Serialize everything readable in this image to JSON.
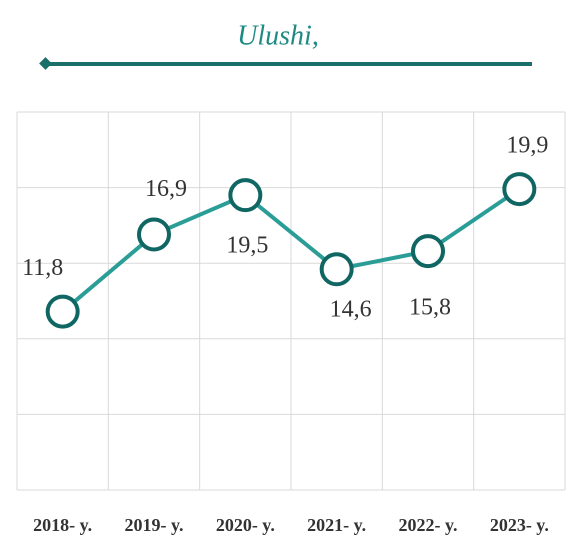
{
  "chart_data": {
    "type": "line",
    "title": "Ulushi,",
    "categories": [
      "2018- y.",
      "2019- y.",
      "2020- y.",
      "2021- y.",
      "2022- y.",
      "2023- y."
    ],
    "series": [
      {
        "name": "Ulushi",
        "color": "#2a9d97",
        "values": [
          11.8,
          16.9,
          19.5,
          14.6,
          15.8,
          19.9
        ],
        "value_labels": [
          "11,8",
          "16,9",
          "19,5",
          "14,6",
          "15,8",
          "19,9"
        ]
      }
    ],
    "ylim": [
      0,
      25
    ],
    "yticks": [
      0,
      5,
      10,
      15,
      20,
      25
    ],
    "grid": true
  }
}
